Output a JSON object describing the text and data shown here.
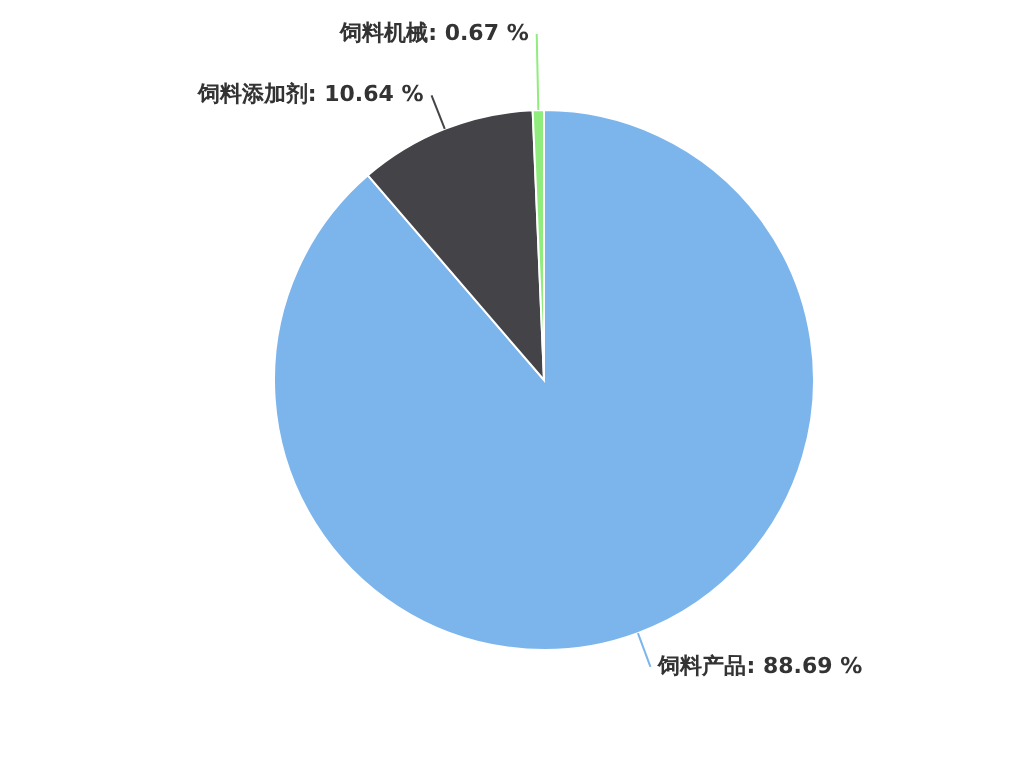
{
  "chart_data": {
    "type": "pie",
    "categories": [
      "饲料产品",
      "饲料添加剂",
      "饲料机械"
    ],
    "values": [
      88.69,
      10.64,
      0.67
    ],
    "colors": [
      "#7cb5ec",
      "#434348",
      "#90ed7d"
    ],
    "value_labels": [
      "88.69 %",
      "10.64 %",
      "0.67 %"
    ],
    "legend": false
  }
}
